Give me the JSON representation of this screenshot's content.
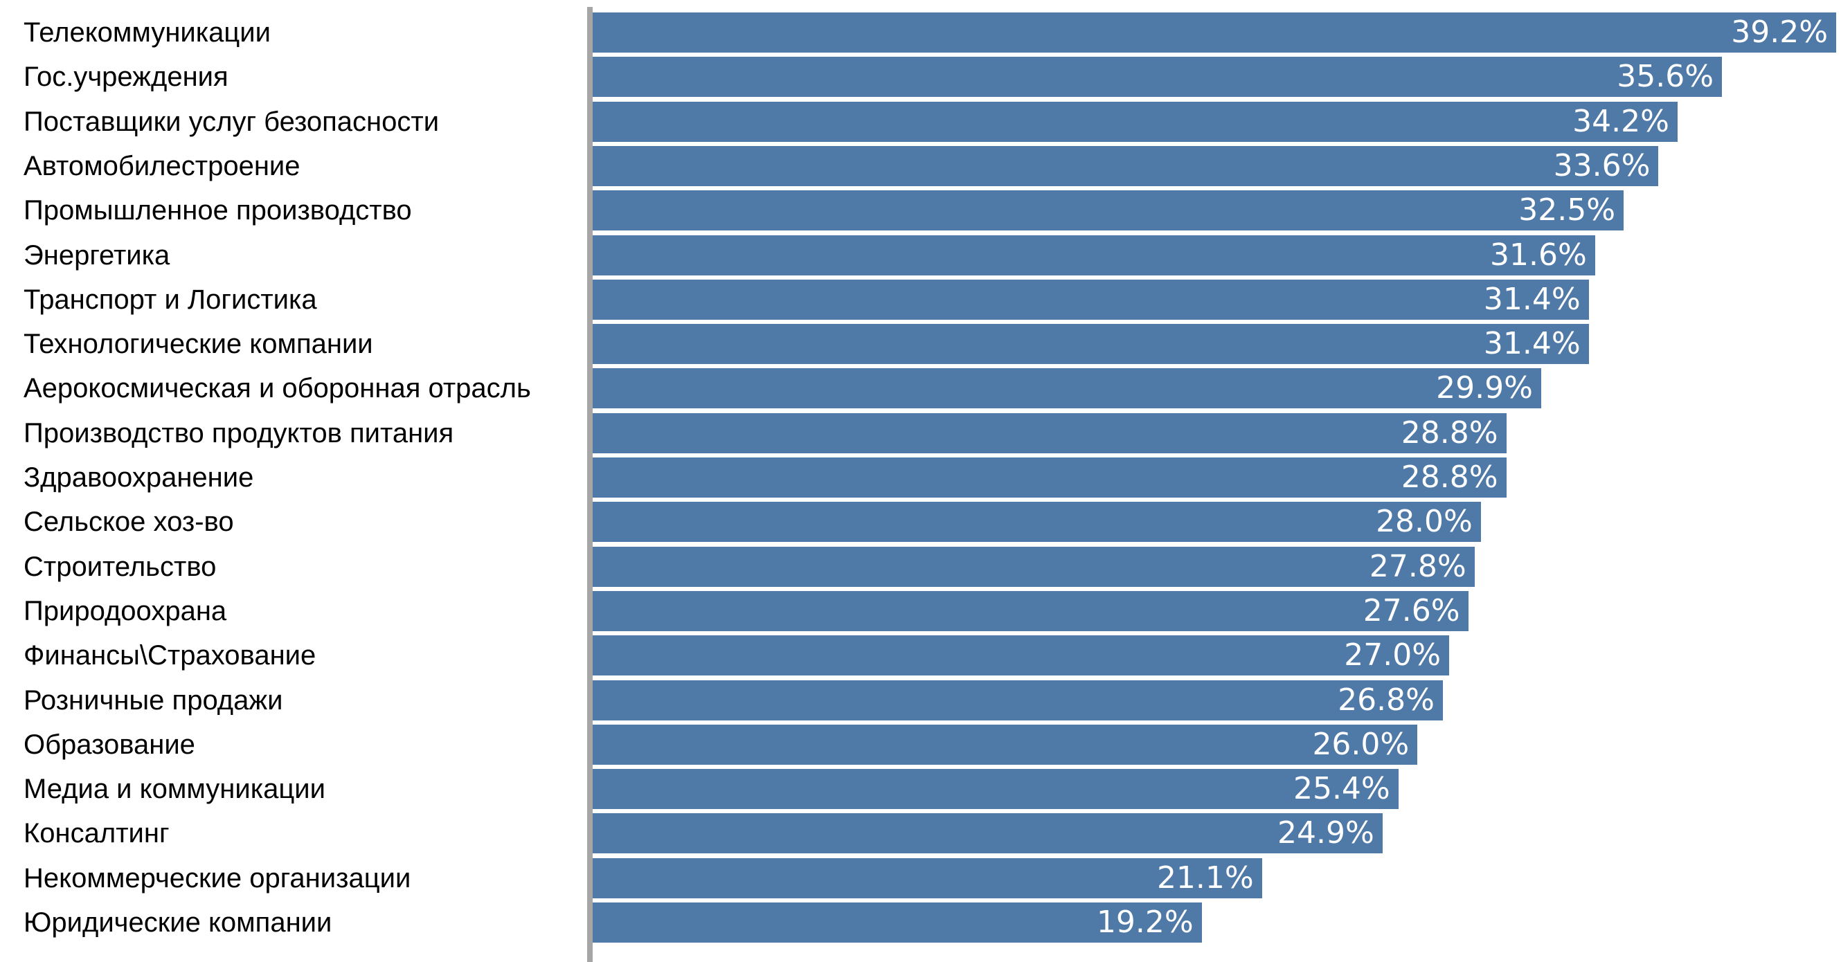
{
  "chart_data": {
    "type": "bar",
    "orientation": "horizontal",
    "categories": [
      "Телекоммуникации",
      "Гос.учреждения",
      "Поставщики услуг безопасности",
      "Автомобилестроение",
      "Промышленное производство",
      "Энергетика",
      "Транспорт и Логистика",
      "Технологические компании",
      "Аерокосмическая и оборонная отрасль",
      "Производство продуктов питания",
      "Здравоохранение",
      "Сельское хоз-во",
      "Строительство",
      "Природоохрана",
      "Финансы\\Страхование",
      "Розничные продажи",
      "Образование",
      "Медиа и коммуникации",
      "Консалтинг",
      "Некоммерческие организации",
      "Юридические компании"
    ],
    "values": [
      39.2,
      35.6,
      34.2,
      33.6,
      32.5,
      31.6,
      31.4,
      31.4,
      29.9,
      28.8,
      28.8,
      28.0,
      27.8,
      27.6,
      27.0,
      26.8,
      26.0,
      25.4,
      24.9,
      21.1,
      19.2
    ],
    "value_labels": [
      "39.2%",
      "35.6%",
      "34.2%",
      "33.6%",
      "32.5%",
      "31.6%",
      "31.4%",
      "31.4%",
      "29.9%",
      "28.8%",
      "28.8%",
      "28.0%",
      "27.8%",
      "27.6%",
      "27.0%",
      "26.8%",
      "26.0%",
      "25.4%",
      "24.9%",
      "21.1%",
      "19.2%"
    ],
    "unit": "%",
    "xlim": [
      0,
      39.2
    ],
    "grid": false,
    "legend": "none",
    "colors": {
      "bar": "#4f79a7",
      "axis": "#a6a6a6",
      "label": "#000000",
      "value_text": "#ffffff"
    }
  }
}
